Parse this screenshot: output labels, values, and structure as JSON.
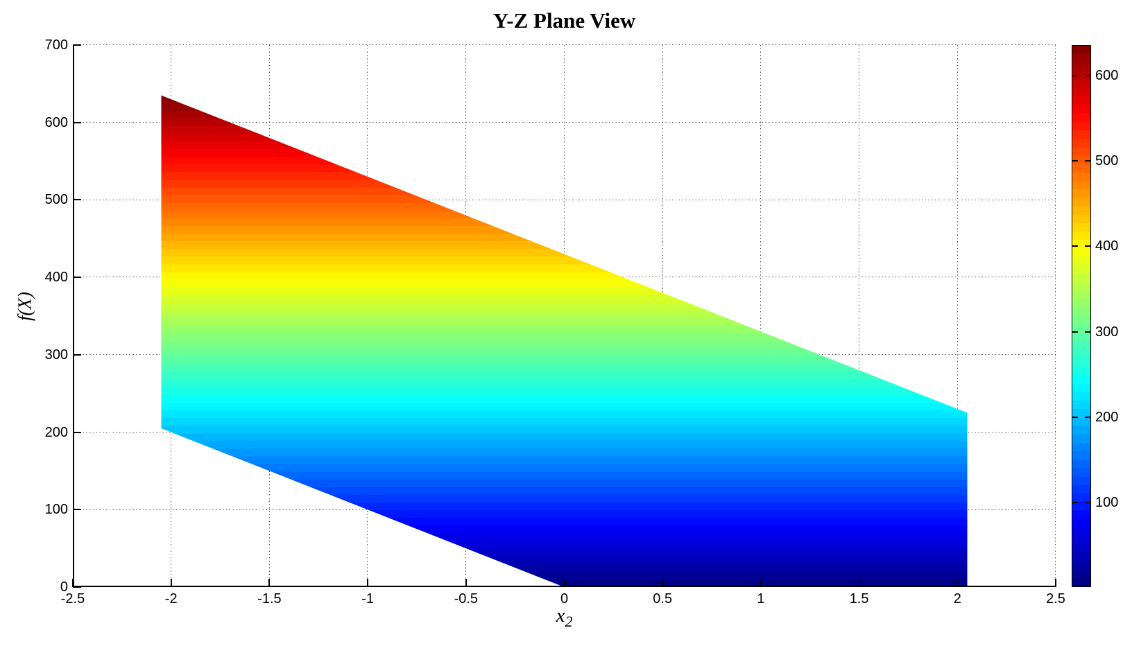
{
  "title": "Y-Z Plane View",
  "xlabel": {
    "base": "x",
    "sub": "2"
  },
  "ylabel": "f(X)",
  "x_axis": {
    "min": -2.5,
    "max": 2.5,
    "ticks": [
      -2.5,
      -2,
      -1.5,
      -1,
      -0.5,
      0,
      0.5,
      1,
      1.5,
      2,
      2.5
    ],
    "tick_labels": [
      "-2.5",
      "-2",
      "-1.5",
      "-1",
      "-0.5",
      "0",
      "0.5",
      "1",
      "1.5",
      "2",
      "2.5"
    ]
  },
  "y_axis": {
    "min": 0,
    "max": 700,
    "ticks": [
      0,
      100,
      200,
      300,
      400,
      500,
      600,
      700
    ],
    "tick_labels": [
      "0",
      "100",
      "200",
      "300",
      "400",
      "500",
      "600",
      "700"
    ]
  },
  "colorbar": {
    "min": 0,
    "max": 635,
    "ticks": [
      100,
      200,
      300,
      400,
      500,
      600
    ],
    "tick_labels": [
      "100",
      "200",
      "300",
      "400",
      "500",
      "600"
    ],
    "colormap": "jet",
    "levels": 64
  },
  "chart_data": {
    "type": "area",
    "title": "Y-Z Plane View",
    "xlabel": "x_2",
    "ylabel": "f(X)",
    "xlim": [
      -2.5,
      2.5
    ],
    "ylim": [
      0,
      700
    ],
    "grid": true,
    "description": "Y-Z plane (side) view of a 3D surface: a sheared planar band colored by f(X) value using the jet colormap; color bands are horizontal because color maps to f(X).",
    "region_polygon_x2_fx": [
      [
        -2.05,
        635
      ],
      [
        2.05,
        225
      ],
      [
        2.05,
        0
      ],
      [
        0,
        0
      ],
      [
        -2.05,
        205
      ]
    ],
    "top_edge": {
      "from": [
        -2.05,
        635
      ],
      "to": [
        2.05,
        225
      ],
      "slope_fx_per_x2": -100
    },
    "bottom_edge": {
      "from": [
        -2.05,
        205
      ],
      "to": [
        0,
        0
      ],
      "clipped_at_fx": 0
    },
    "color_by": "f(X)",
    "colormap": "jet",
    "color_range": [
      0,
      635
    ],
    "colormap_levels": 64,
    "colorbar_ticks": [
      100,
      200,
      300,
      400,
      500,
      600
    ]
  },
  "colors": {
    "background": "#ffffff",
    "axis": "#000000",
    "grid": "#2d2d2d",
    "jet_min": "#000090",
    "jet_mid_cyan": "#00ffff",
    "jet_mid_yellow": "#ffff00",
    "jet_max": "#900000"
  }
}
